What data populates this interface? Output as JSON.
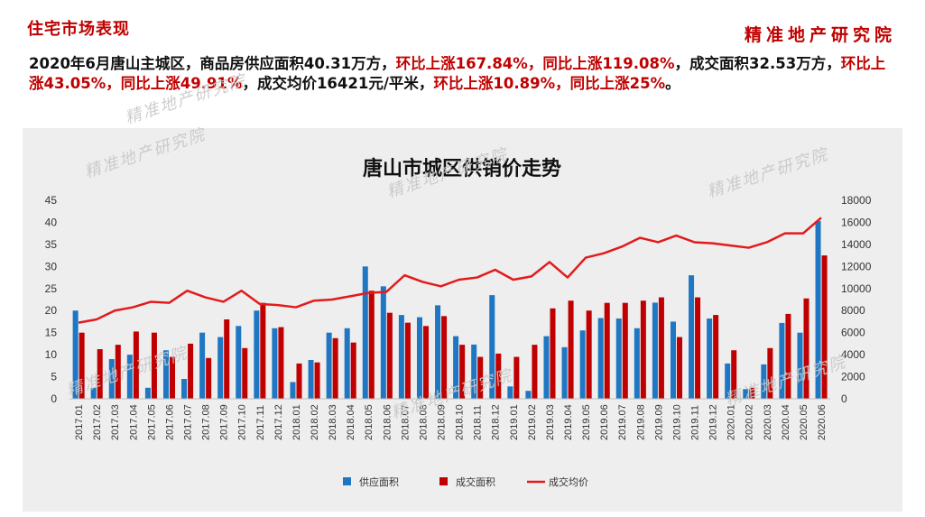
{
  "header": {
    "page_title": "住宅市场表现",
    "brand": "精准地产研究院"
  },
  "summary": {
    "p1": "2020年6月唐山主城区，商品房供应面积40.31万方，",
    "r1": "环比上涨167.84%，同比上涨119.08%",
    "p2": "，成交面积32.53万方，",
    "r2": "环比上涨43.05%，同比上涨49.91%",
    "p3": "，成交均价16421元/平米，",
    "r3": "环比上涨10.89%，同比上涨25%",
    "p4": "。"
  },
  "watermark_text": "精准地产研究院",
  "colors": {
    "supply": "#1f77c4",
    "deal_area": "#c00000",
    "price": "#e31a1c",
    "accent": "#c00000"
  },
  "chart_data": {
    "type": "bar",
    "title": "唐山市城区供销价走势",
    "categories": [
      "2017.01",
      "2017.02",
      "2017.03",
      "2017.04",
      "2017.05",
      "2017.06",
      "2017.07",
      "2017.08",
      "2017.09",
      "2017.10",
      "2017.11",
      "2017.12",
      "2018.01",
      "2018.02",
      "2018.03",
      "2018.04",
      "2018.05",
      "2018.06",
      "2018.07",
      "2018.08",
      "2018.09",
      "2018.10",
      "2018.11",
      "2018.12",
      "2019.01",
      "2019.02",
      "2019.03",
      "2019.04",
      "2019.05",
      "2019.06",
      "2019.07",
      "2019.08",
      "2019.09",
      "2019.10",
      "2019.11",
      "2019.12",
      "2020.01",
      "2020.02",
      "2020.03",
      "2020.04",
      "2020.05",
      "2020.06"
    ],
    "series": [
      {
        "name": "供应面积",
        "axis": "left",
        "kind": "bar",
        "values": [
          20,
          2.5,
          9,
          10,
          2.5,
          11,
          4.5,
          15,
          14,
          16.5,
          20,
          16,
          3.8,
          8.8,
          15,
          16,
          30,
          25.5,
          19,
          18.5,
          21.2,
          14.2,
          12.3,
          23.5,
          2.8,
          1.8,
          14.2,
          11.7,
          15.5,
          18.3,
          18.2,
          16,
          21.8,
          17.5,
          28,
          18.2,
          8,
          2.2,
          7.8,
          17.2,
          15,
          40.31
        ]
      },
      {
        "name": "成交面积",
        "axis": "right",
        "kind": "bar",
        "values": [
          6000,
          4500,
          4900,
          6100,
          6000,
          3800,
          5000,
          3700,
          7200,
          4600,
          8700,
          6500,
          3200,
          3300,
          5500,
          5100,
          9800,
          7800,
          6900,
          6600,
          7500,
          4900,
          3800,
          4100,
          3800,
          4900,
          8200,
          8900,
          8000,
          8700,
          8700,
          8900,
          9200,
          5600,
          9200,
          7600,
          4400,
          1000,
          4600,
          7700,
          9100,
          13000
        ]
      },
      {
        "name": "成交均价",
        "axis": "right",
        "kind": "line",
        "values": [
          6900,
          7200,
          8000,
          8300,
          8800,
          8700,
          9800,
          9200,
          8800,
          9800,
          8600,
          8500,
          8300,
          8900,
          9000,
          9300,
          9600,
          9700,
          11200,
          10600,
          10200,
          10800,
          11000,
          11700,
          10800,
          11100,
          12400,
          11000,
          12800,
          13200,
          13800,
          14600,
          14200,
          14800,
          14200,
          14100,
          13900,
          13700,
          14200,
          15000,
          15000,
          16421
        ]
      }
    ],
    "y_left": {
      "min": 0,
      "max": 45,
      "ticks": [
        0,
        5,
        10,
        15,
        20,
        25,
        30,
        35,
        40,
        45
      ]
    },
    "y_right": {
      "min": 0,
      "max": 18000,
      "ticks": [
        0,
        2000,
        4000,
        6000,
        8000,
        10000,
        12000,
        14000,
        16000,
        18000
      ]
    },
    "grid": false,
    "legend_position": "bottom"
  }
}
